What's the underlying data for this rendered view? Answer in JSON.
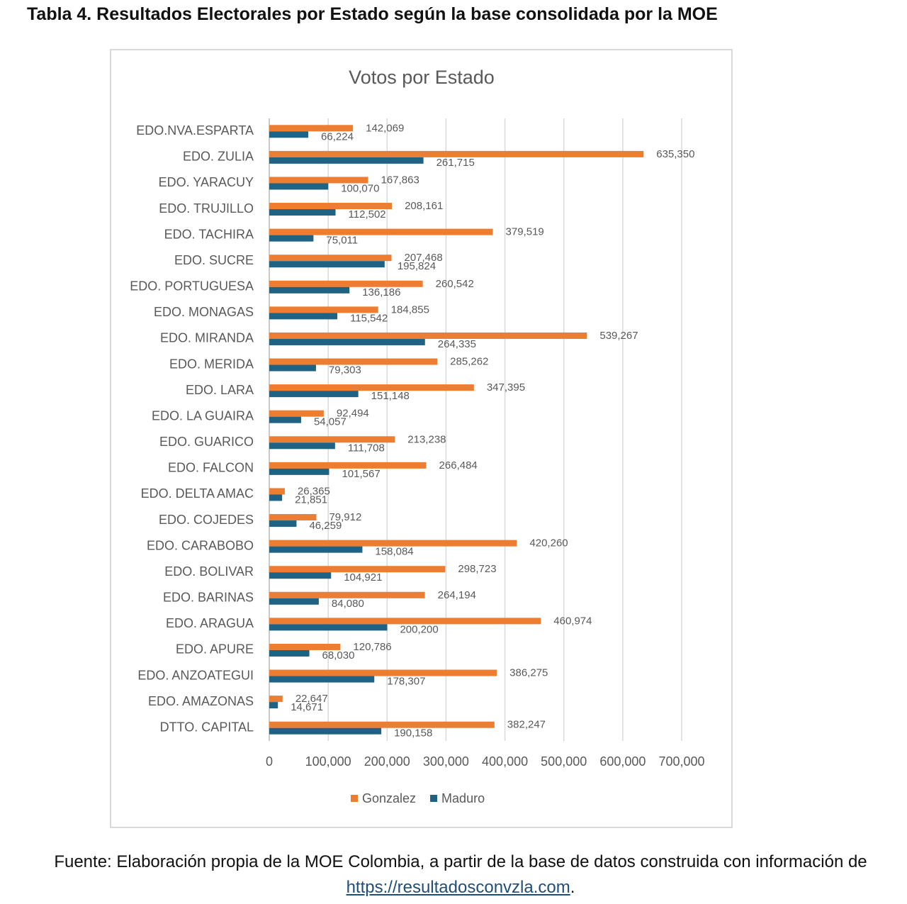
{
  "heading": "Tabla 4. Resultados Electorales por Estado según la base consolidada por la MOE",
  "chart_data": {
    "type": "bar",
    "orientation": "horizontal",
    "title": "Votos por Estado",
    "categories": [
      "EDO.NVA.ESPARTA",
      "EDO. ZULIA",
      "EDO. YARACUY",
      "EDO. TRUJILLO",
      "EDO. TACHIRA",
      "EDO. SUCRE",
      "EDO. PORTUGUESA",
      "EDO. MONAGAS",
      "EDO. MIRANDA",
      "EDO. MERIDA",
      "EDO. LARA",
      "EDO. LA GUAIRA",
      "EDO. GUARICO",
      "EDO. FALCON",
      "EDO. DELTA AMAC",
      "EDO. COJEDES",
      "EDO. CARABOBO",
      "EDO. BOLIVAR",
      "EDO. BARINAS",
      "EDO. ARAGUA",
      "EDO. APURE",
      "EDO. ANZOATEGUI",
      "EDO. AMAZONAS",
      "DTTO. CAPITAL"
    ],
    "series": [
      {
        "name": "Gonzalez",
        "color": "#ed7d31",
        "values": [
          142069,
          635350,
          167863,
          208161,
          379519,
          207468,
          260542,
          184855,
          539267,
          285262,
          347395,
          92494,
          213238,
          266484,
          26365,
          79912,
          420260,
          298723,
          264194,
          460974,
          120786,
          386275,
          22647,
          382247
        ],
        "value_labels": [
          "142,069",
          "635,350",
          "167,863",
          "208,161",
          "379,519",
          "207,468",
          "260,542",
          "184,855",
          "539,267",
          "285,262",
          "347,395",
          "92,494",
          "213,238",
          "266,484",
          "26,365",
          "79,912",
          "420,260",
          "298,723",
          "264,194",
          "460,974",
          "120,786",
          "386,275",
          "22,647",
          "382,247"
        ]
      },
      {
        "name": "Maduro",
        "color": "#1f6283",
        "values": [
          66224,
          261715,
          100070,
          112502,
          75011,
          195824,
          136186,
          115542,
          264335,
          79303,
          151148,
          54057,
          111708,
          101567,
          21851,
          46259,
          158084,
          104921,
          84080,
          200200,
          68030,
          178307,
          14671,
          190158
        ],
        "value_labels": [
          "66,224",
          "261,715",
          "100,070",
          "112,502",
          "75,011",
          "195,824",
          "136,186",
          "115,542",
          "264,335",
          "79,303",
          "151,148",
          "54,057",
          "111,708",
          "101,567",
          "21,851",
          "46,259",
          "158,084",
          "104,921",
          "84,080",
          "200,200",
          "68,030",
          "178,307",
          "14,671",
          "190,158"
        ]
      }
    ],
    "xlim": [
      0,
      700000
    ],
    "xticks": [
      0,
      {
        "value": 100000,
        "label": "100,000"
      },
      {
        "value": 200000,
        "label": "200,000"
      },
      {
        "value": 300000,
        "label": "300,000"
      },
      {
        "value": 400000,
        "label": "400,000"
      },
      {
        "value": 500000,
        "label": "500,000"
      },
      {
        "value": 600000,
        "label": "600,000"
      },
      {
        "value": 700000,
        "label": "700,000"
      }
    ],
    "grid": true,
    "legend": "bottom"
  },
  "source": {
    "text": "Fuente: Elaboración propia de la MOE Colombia, a partir de la base de datos construida con información de",
    "link": "https://resultadosconvzla.com",
    "end": "."
  }
}
